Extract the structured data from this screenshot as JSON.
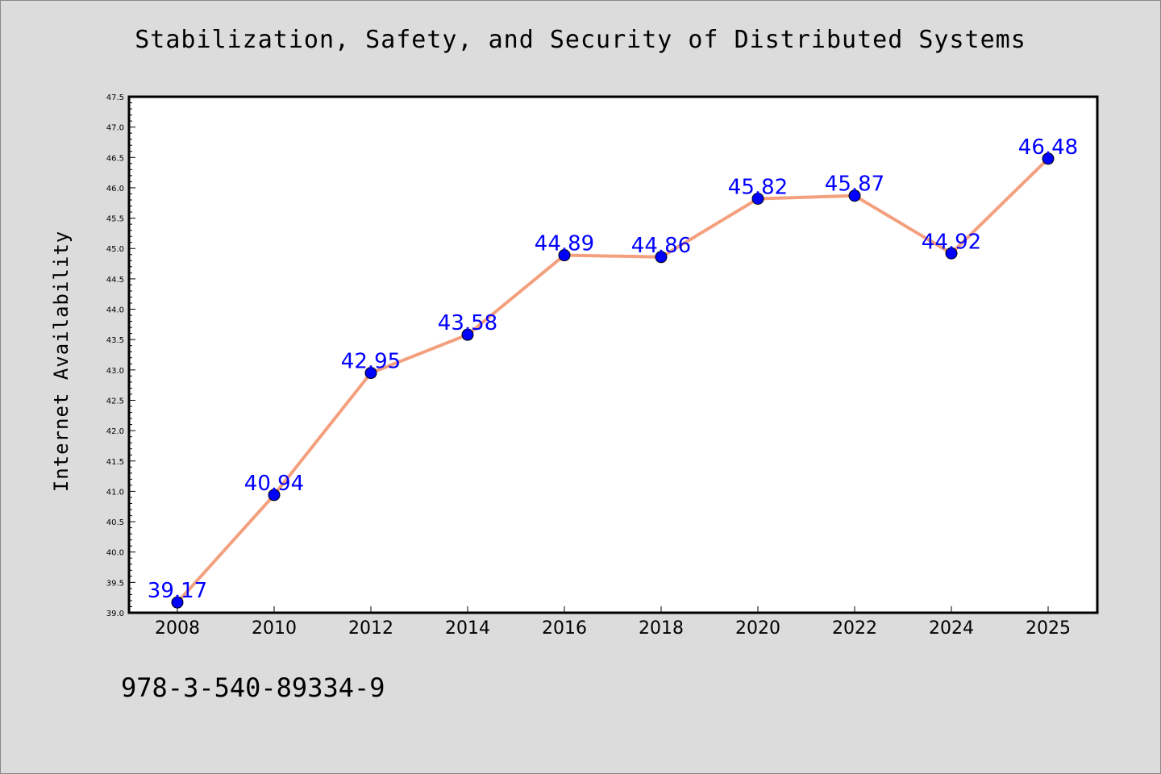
{
  "footer": {
    "code": "978-3-540-89334-9"
  },
  "colors": {
    "line": "#f4a07e",
    "marker": "#0000ff",
    "data_label": "#0000ff",
    "background": "#dcdcdc",
    "plot_area": "#ffffff"
  },
  "chart_data": {
    "type": "line",
    "title": "Stabilization, Safety, and Security of Distributed Systems",
    "xlabel": "",
    "ylabel": "Internet Availability",
    "categories": [
      "2008",
      "2010",
      "2012",
      "2014",
      "2016",
      "2018",
      "2020",
      "2022",
      "2024",
      "2025"
    ],
    "series": [
      {
        "values": [
          39.17,
          40.94,
          42.95,
          43.58,
          44.89,
          44.86,
          45.82,
          45.87,
          44.92,
          46.48
        ]
      }
    ],
    "data_labels": [
      "39.17",
      "40.94",
      "42.95",
      "43.58",
      "44.89",
      "44.86",
      "45.82",
      "45.87",
      "44.92",
      "46.48"
    ],
    "ylim": [
      39.0,
      47.5
    ],
    "yticks": [
      "39.0",
      "39.5",
      "40.0",
      "40.5",
      "41.0",
      "41.5",
      "42.0",
      "42.5",
      "43.0",
      "43.5",
      "44.0",
      "44.5",
      "45.0",
      "45.5",
      "46.0",
      "46.5",
      "47.0",
      "47.5"
    ],
    "grid": false,
    "legend": "none"
  }
}
